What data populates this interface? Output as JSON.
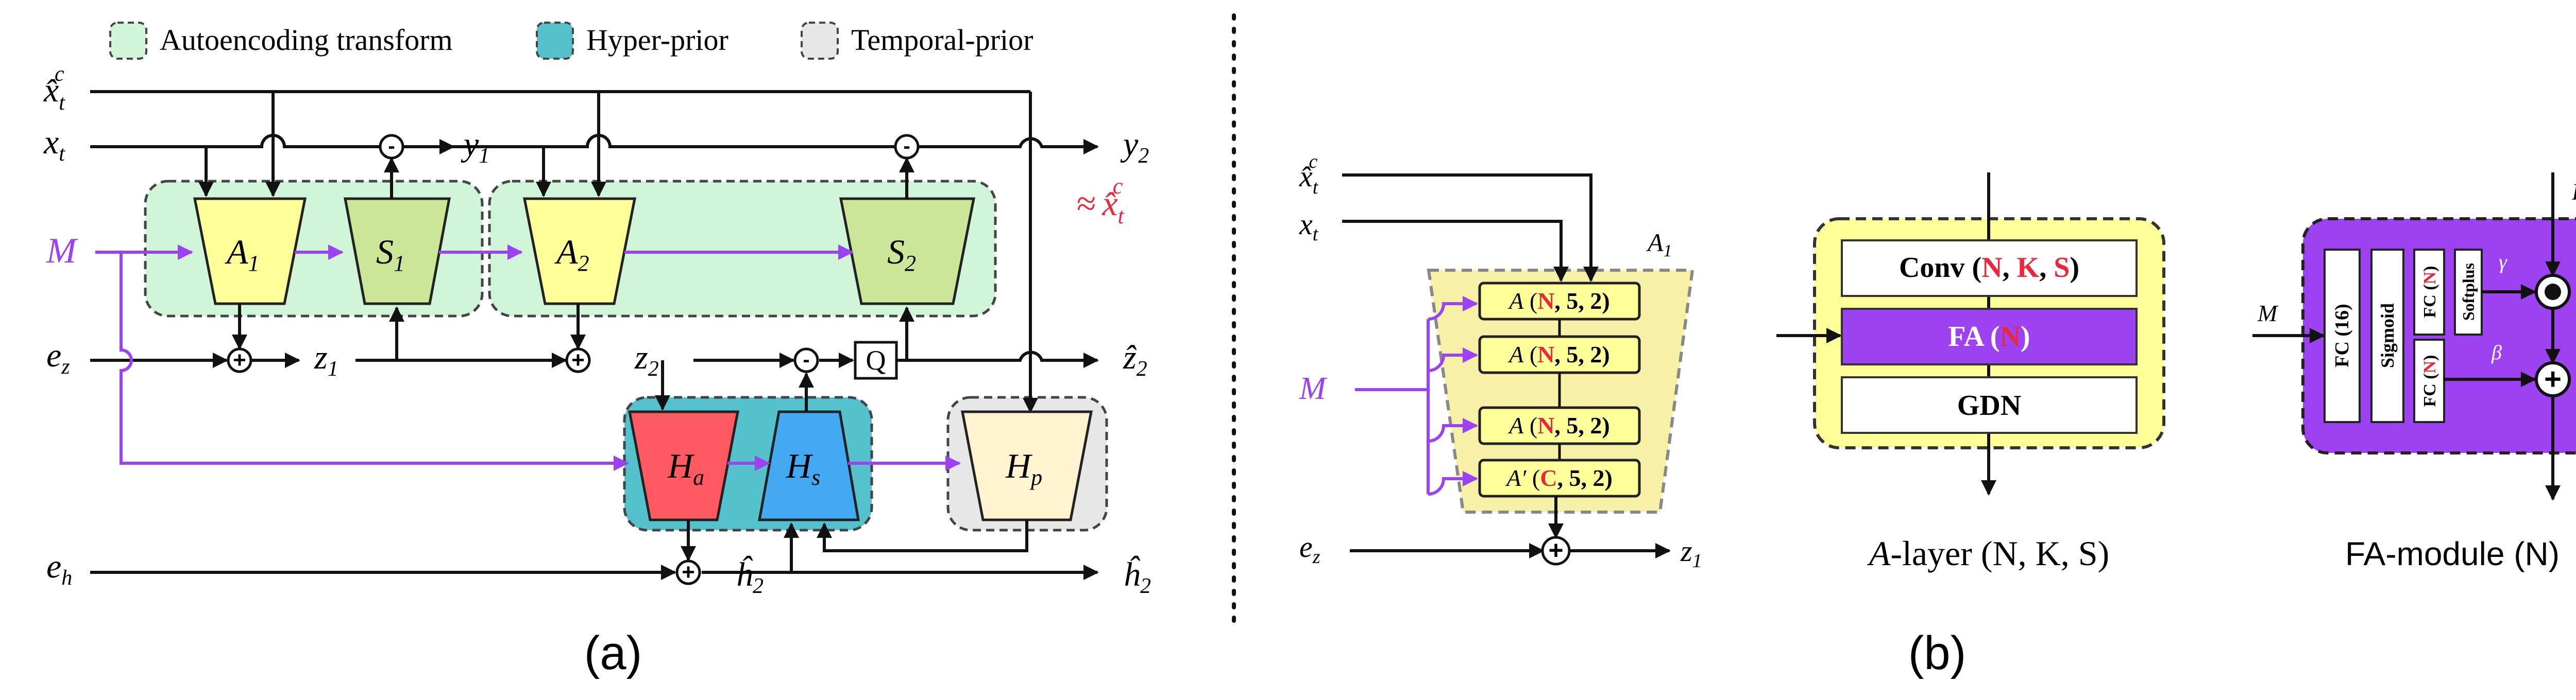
{
  "legend": {
    "autoencoding": "Autoencoding transform",
    "hyper_prior": "Hyper-prior",
    "temporal_prior": "Temporal-prior"
  },
  "colors": {
    "autoencoding_fill": "#d1f5d9",
    "hyper_fill": "#55c1cc",
    "temporal_fill": "#e7e7e7",
    "analysis_fill": "#ffff99",
    "synthesis_fill": "#cce698",
    "ha_fill": "#ff5a62",
    "hs_fill": "#43a9f2",
    "hp_fill": "#fff3d0",
    "m_purple": "#9c42f0",
    "accent_red": "#e8283c",
    "fa_purple": "#9c42f0"
  },
  "panel_a": {
    "caption": "(a)",
    "inputs": {
      "xhat": "x̂",
      "xhat_sub": "t",
      "xhat_sup": "c",
      "x": "x",
      "x_sub": "t",
      "m": "M",
      "e": "e",
      "ez_sub": "z",
      "eh_sub": "h"
    },
    "blocks": {
      "a1": "A",
      "a1_sub": "1",
      "s1": "S",
      "s1_sub": "1",
      "a2": "A",
      "a2_sub": "2",
      "s2": "S",
      "s2_sub": "2",
      "ha": "H",
      "ha_sub": "a",
      "hs": "H",
      "hs_sub": "s",
      "hp": "H",
      "hp_sub": "p"
    },
    "signals": {
      "y1": "y",
      "y1_sub": "1",
      "y2": "y",
      "y2_sub": "2",
      "z1": "z",
      "z1_sub": "1",
      "z2": "z",
      "z2_sub": "2",
      "zhat2": "ẑ",
      "zhat2_sub": "2",
      "hhat2": "ĥ",
      "hhat2_sub": "2",
      "hhat2_out": "ĥ",
      "hhat2_out_sub": "2"
    },
    "approx": "≈",
    "approx_sym": "x̂",
    "approx_sub": "t",
    "approx_sup": "c",
    "quant": "Q",
    "minus": "-",
    "plus": "+"
  },
  "panel_b": {
    "caption": "(b)",
    "encoder": {
      "xhat": "x̂",
      "xhat_sub": "t",
      "xhat_sup": "c",
      "x": "x",
      "x_sub": "t",
      "m": "M",
      "e": "e",
      "e_sub": "z",
      "z": "z",
      "z_sub": "1",
      "title": "A",
      "title_sub": "1",
      "layers": [
        {
          "name": "A",
          "open": " (",
          "ch": "N",
          "rest": ", 5, 2)"
        },
        {
          "name": "A",
          "open": " (",
          "ch": "N",
          "rest": ", 5, 2)"
        },
        {
          "name": "A",
          "open": " (",
          "ch": "N",
          "rest": ", 5, 2)"
        },
        {
          "name": "A′",
          "open": " (",
          "ch": "C",
          "rest": ", 5, 2)"
        }
      ]
    },
    "a_layer": {
      "conv_name": "Conv (",
      "conv_n": "N",
      "conv_sep1": ", ",
      "conv_k": "K",
      "conv_sep2": ", ",
      "conv_s": "S",
      "conv_close": ")",
      "fa_name": "FA (",
      "fa_n": "N",
      "fa_close": ")",
      "gdn": "GDN",
      "caption_a": "A",
      "caption_rest": "-layer (N, K, S)"
    },
    "fa_module": {
      "m": "M",
      "f": "F",
      "fc16": "FC (16)",
      "sigmoid": "Sigmoid",
      "fc_top_name": "FC (",
      "fc_top_n": "N",
      "fc_top_close": ")",
      "fc_bot_name": "FC (",
      "fc_bot_n": "N",
      "fc_bot_close": ")",
      "softplus": "Softplus",
      "gamma": "γ",
      "beta": "β",
      "caption": "FA-module (N)"
    }
  }
}
